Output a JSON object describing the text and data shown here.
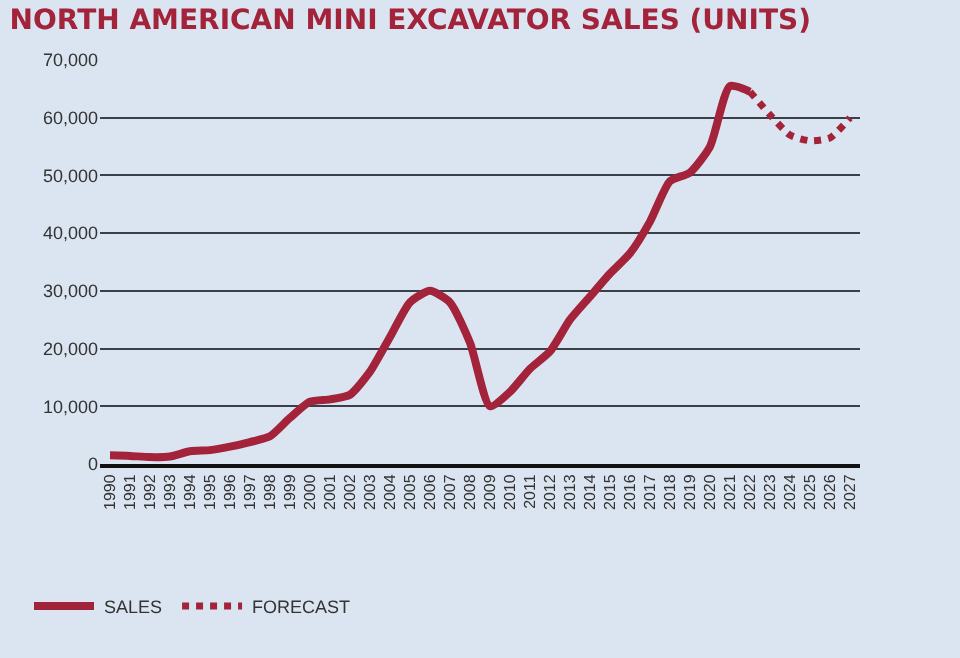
{
  "chart_data": {
    "type": "line",
    "title": "NORTH AMERICAN MINI EXCAVATOR SALES (UNITS)",
    "categories": [
      "1990",
      "1991",
      "1992",
      "1993",
      "1994",
      "1995",
      "1996",
      "1997",
      "1998",
      "1999",
      "2000",
      "2001",
      "2002",
      "2003",
      "2004",
      "2005",
      "2006",
      "2007",
      "2008",
      "2009",
      "2010",
      "2011",
      "2012",
      "2013",
      "2014",
      "2015",
      "2016",
      "2017",
      "2018",
      "2019",
      "2020",
      "2021",
      "2022",
      "2023",
      "2024",
      "2025",
      "2026",
      "2027"
    ],
    "series": [
      {
        "name": "SALES",
        "color": "#a3233a",
        "line_style": "solid",
        "values": [
          1500,
          1400,
          1200,
          1300,
          2200,
          2400,
          3000,
          3800,
          4800,
          8000,
          10800,
          11200,
          12000,
          16000,
          22000,
          28000,
          30000,
          28000,
          21000,
          10000,
          12500,
          16500,
          19500,
          25000,
          29000,
          33000,
          36500,
          42000,
          49000,
          50500,
          55000,
          65500,
          64500,
          null,
          null,
          null,
          null,
          null
        ]
      },
      {
        "name": "FORECAST",
        "color": "#a3233a",
        "line_style": "dotted",
        "values": [
          null,
          null,
          null,
          null,
          null,
          null,
          null,
          null,
          null,
          null,
          null,
          null,
          null,
          null,
          null,
          null,
          null,
          null,
          null,
          null,
          null,
          null,
          null,
          null,
          null,
          null,
          null,
          null,
          null,
          null,
          null,
          null,
          64500,
          60500,
          57000,
          56000,
          56500,
          60000
        ]
      }
    ],
    "ylim": [
      0,
      70000
    ],
    "yticks": [
      {
        "value": 0,
        "label": "0"
      },
      {
        "value": 10000,
        "label": "10,000"
      },
      {
        "value": 20000,
        "label": "20,000"
      },
      {
        "value": 30000,
        "label": "30,000"
      },
      {
        "value": 40000,
        "label": "40,000"
      },
      {
        "value": 50000,
        "label": "50,000"
      },
      {
        "value": 60000,
        "label": "60,000"
      },
      {
        "value": 70000,
        "label": "70,000"
      }
    ],
    "grid": "y",
    "legend": "bottom left",
    "marker": "none"
  }
}
